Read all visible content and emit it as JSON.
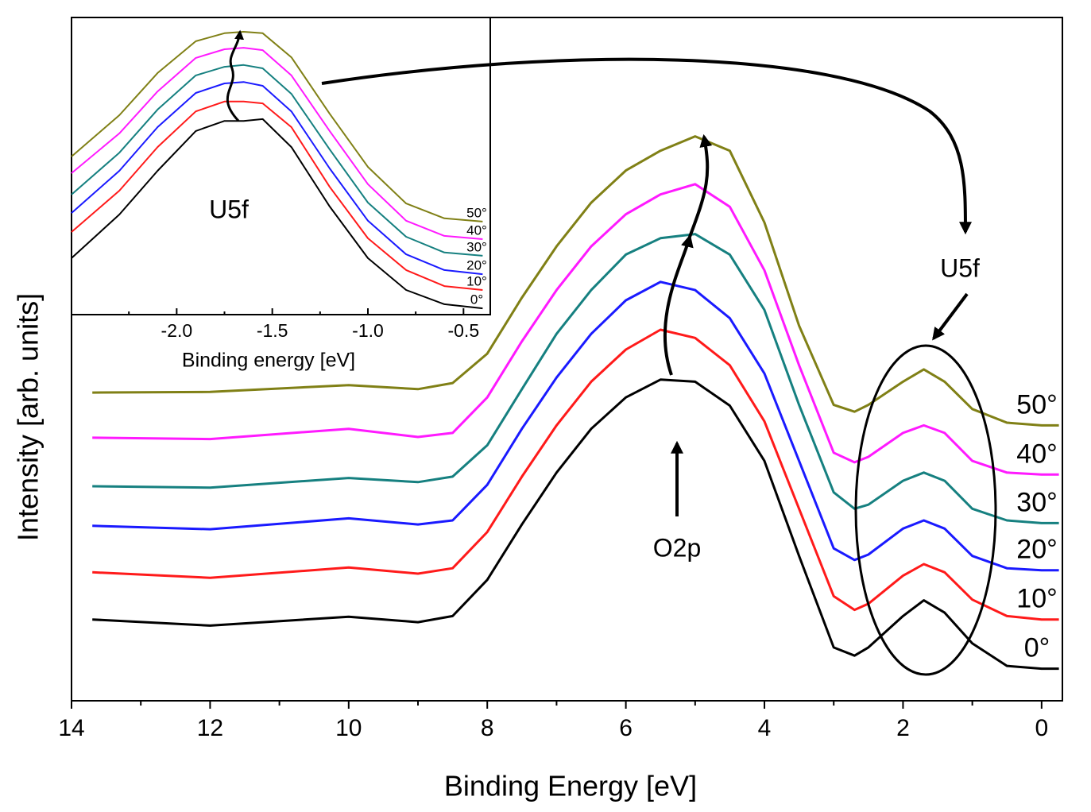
{
  "chart_data": [
    {
      "type": "line",
      "xlabel": "Binding Energy [eV]",
      "ylabel": "Intensity [arb. units]",
      "annotations": [
        "O2p",
        "U5f"
      ],
      "xlim": [
        14,
        -0.3
      ],
      "ylim": [
        0,
        100
      ],
      "xticks": [
        14,
        12,
        10,
        8,
        6,
        4,
        2,
        0
      ],
      "xminorticks": [
        13,
        11,
        9,
        7,
        5,
        3,
        1
      ],
      "x": [
        13.7,
        12,
        10,
        9,
        8.5,
        8,
        7.5,
        7,
        6.5,
        6,
        5.5,
        5,
        4.5,
        4,
        3.5,
        3,
        2.7,
        2.5,
        2,
        1.7,
        1.4,
        1,
        0.5,
        0,
        -0.25
      ],
      "series": [
        {
          "name": "0°",
          "color": "#000000",
          "values": [
            11.9,
            11.0,
            12.3,
            11.5,
            12.4,
            17.7,
            25.8,
            33.4,
            39.8,
            44.4,
            47.0,
            46.7,
            43.2,
            35.1,
            21.2,
            7.8,
            6.6,
            7.8,
            12.4,
            14.7,
            12.9,
            8.4,
            5.1,
            4.7,
            4.7
          ]
        },
        {
          "name": "10°",
          "color": "#ff1a1a",
          "values": [
            18.8,
            18.0,
            19.5,
            18.6,
            19.4,
            24.7,
            32.8,
            40.3,
            46.7,
            51.4,
            54.3,
            53.1,
            49.1,
            40.9,
            28.1,
            15.3,
            13.3,
            14.2,
            18.3,
            20.0,
            18.8,
            14.8,
            12.4,
            11.9,
            11.9
          ]
        },
        {
          "name": "20°",
          "color": "#1a1aff",
          "values": [
            25.6,
            25.1,
            26.7,
            25.8,
            26.4,
            31.6,
            39.8,
            47.3,
            53.7,
            58.6,
            61.3,
            60.1,
            56.0,
            47.9,
            35.1,
            22.3,
            20.6,
            21.4,
            25.2,
            26.4,
            25.2,
            21.2,
            19.4,
            19.1,
            19.1
          ]
        },
        {
          "name": "30°",
          "color": "#168080",
          "values": [
            31.4,
            31.2,
            32.6,
            32.0,
            32.8,
            37.4,
            45.6,
            53.7,
            60.1,
            65.3,
            67.7,
            68.3,
            65.3,
            57.2,
            43.3,
            30.5,
            28.1,
            28.7,
            32.2,
            33.4,
            32.2,
            28.1,
            26.4,
            26.0,
            26.0
          ]
        },
        {
          "name": "40°",
          "color": "#ff1aff",
          "values": [
            38.5,
            38.3,
            39.8,
            38.6,
            39.2,
            44.4,
            52.6,
            60.1,
            66.5,
            71.2,
            74.1,
            75.6,
            72.3,
            63.0,
            49.1,
            36.3,
            34.9,
            35.7,
            39.2,
            40.3,
            39.2,
            35.1,
            33.4,
            33.1,
            33.1
          ]
        },
        {
          "name": "50°",
          "color": "#808016",
          "values": [
            45.1,
            45.2,
            46.2,
            45.6,
            46.5,
            50.8,
            59.0,
            66.5,
            72.9,
            77.6,
            80.5,
            82.6,
            80.5,
            70.0,
            54.9,
            43.3,
            42.3,
            43.3,
            46.7,
            48.5,
            46.7,
            42.7,
            40.7,
            40.3,
            40.3
          ]
        }
      ]
    },
    {
      "type": "line",
      "xlabel": "Binding energy [eV]",
      "annotations": [
        "U5f"
      ],
      "xlim": [
        -2.55,
        -0.36
      ],
      "ylim": [
        0,
        100
      ],
      "xticks": [
        {
          "value": -2,
          "label": "-2.0"
        },
        -1.5,
        {
          "value": -1,
          "label": "-1.0"
        },
        -0.5
      ],
      "xminorticks": [
        -2.25,
        -1.75,
        -1.25,
        -0.75
      ],
      "x": [
        -2.55,
        -2.3,
        -2.1,
        -1.9,
        -1.75,
        -1.65,
        -1.55,
        -1.4,
        -1.2,
        -1.0,
        -0.8,
        -0.6,
        -0.4
      ],
      "series": [
        {
          "name": "0°",
          "color": "#000000",
          "values": [
            19.0,
            33.7,
            48.4,
            61.8,
            65.2,
            65.2,
            65.8,
            56.4,
            36.4,
            19.0,
            8.3,
            3.5,
            2.1
          ]
        },
        {
          "name": "10°",
          "color": "#ff1a1a",
          "values": [
            27.8,
            41.7,
            56.4,
            68.4,
            71.7,
            71.7,
            71.1,
            63.1,
            43.0,
            25.7,
            15.0,
            9.6,
            8.3
          ]
        },
        {
          "name": "20°",
          "color": "#1a1aff",
          "values": [
            34.2,
            48.4,
            63.1,
            74.6,
            77.8,
            78.3,
            77.0,
            68.4,
            49.2,
            31.6,
            20.3,
            15.0,
            13.6
          ]
        },
        {
          "name": "30°",
          "color": "#168080",
          "values": [
            40.4,
            54.5,
            69.0,
            80.5,
            83.4,
            84.0,
            82.9,
            74.3,
            55.6,
            37.7,
            26.2,
            20.9,
            19.8
          ]
        },
        {
          "name": "40°",
          "color": "#ff1aff",
          "values": [
            47.6,
            61.0,
            75.1,
            86.4,
            89.3,
            89.8,
            89.0,
            80.5,
            61.8,
            43.9,
            31.6,
            26.5,
            25.4
          ]
        },
        {
          "name": "50°",
          "color": "#808016",
          "values": [
            53.2,
            67.1,
            81.3,
            92.0,
            94.7,
            95.2,
            94.7,
            86.6,
            67.6,
            49.7,
            37.4,
            32.4,
            31.3
          ]
        }
      ]
    }
  ]
}
